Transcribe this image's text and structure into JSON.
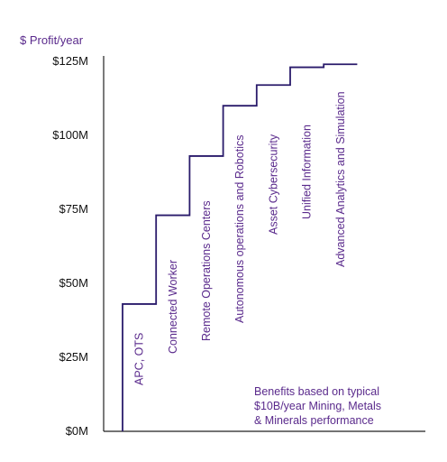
{
  "chart_data": {
    "type": "line",
    "step": true,
    "ylabel": "$ Profit/year",
    "y_unit": "$M",
    "ylim": [
      0,
      125
    ],
    "y_ticks": [
      {
        "value": 0,
        "label": "$0M"
      },
      {
        "value": 25,
        "label": "$25M"
      },
      {
        "value": 50,
        "label": "$50M"
      },
      {
        "value": 75,
        "label": "$75M"
      },
      {
        "value": 100,
        "label": "$100M"
      },
      {
        "value": 125,
        "label": "$125M"
      }
    ],
    "categories": [
      "APC, OTS",
      "Connected Worker",
      "Remote Operations Centers",
      "Autonomous operations and Robotics",
      "Asset Cybersecurity",
      "Unified Information",
      "Advanced Analytics and Simulation"
    ],
    "values": [
      43,
      73,
      93,
      110,
      117,
      123,
      124
    ],
    "grid": false,
    "legend": "none",
    "annotation": [
      "Benefits based  on typical",
      "$10B/year Mining, Metals",
      "& Minerals performance"
    ],
    "colors": {
      "line": "#2a1b6b",
      "axis": "#222222",
      "text": "#111111",
      "accent": "#5a2a8c"
    }
  }
}
